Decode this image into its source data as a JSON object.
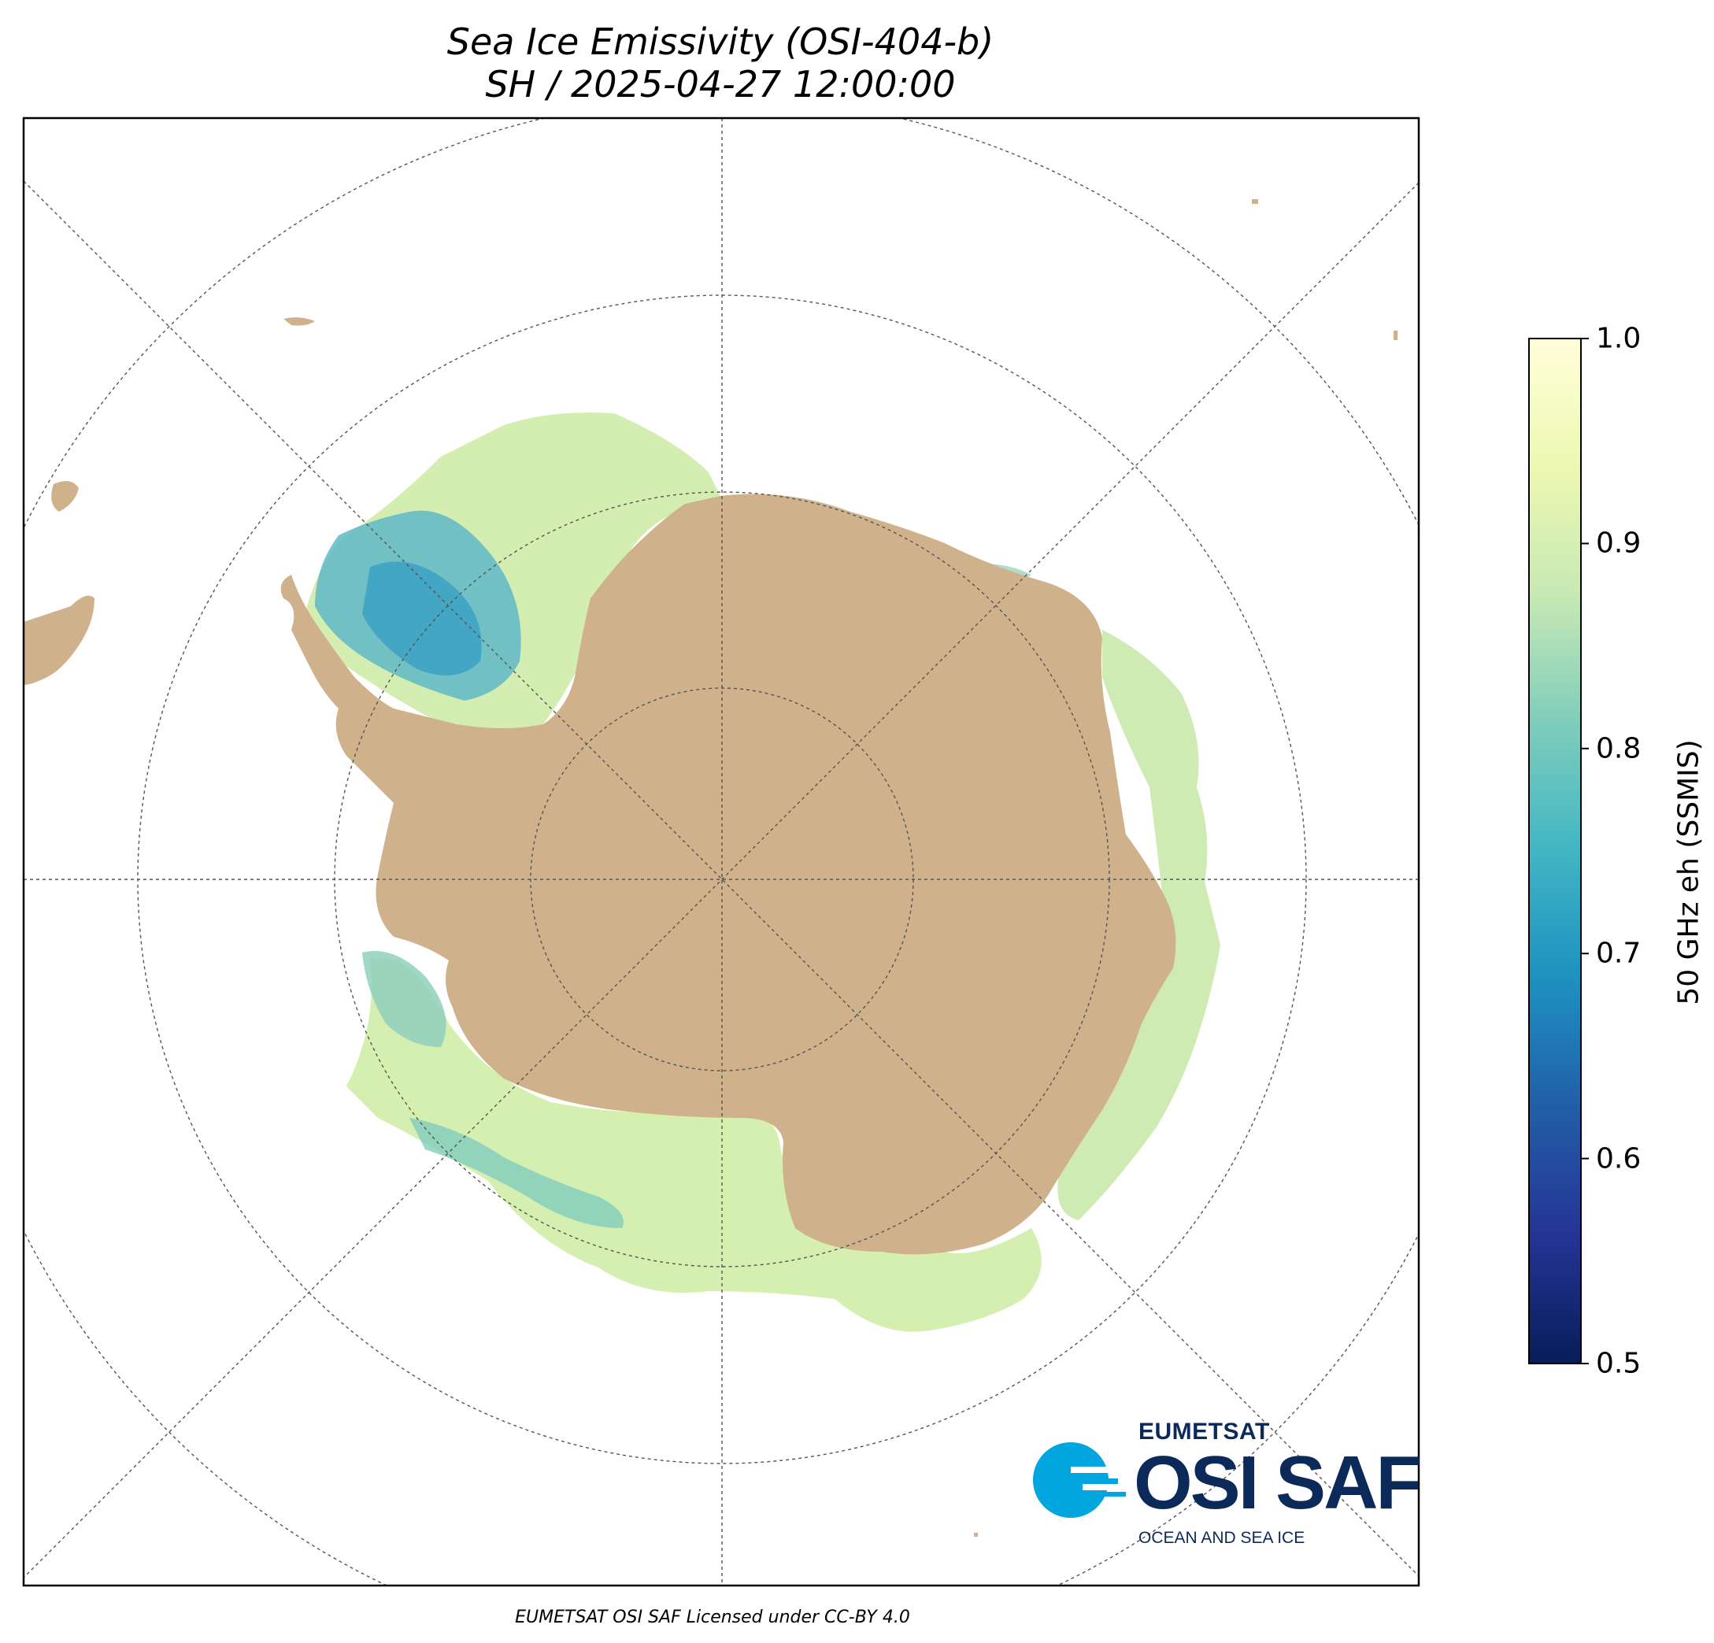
{
  "title": {
    "line1": "Sea Ice Emissivity (OSI-404-b)",
    "line2": "SH / 2025-04-27 12:00:00"
  },
  "colorbar": {
    "label": "50 GHz eh (SSMIS)",
    "min": 0.5,
    "max": 1.0,
    "ticks": [
      "1.0",
      "0.9",
      "0.8",
      "0.7",
      "0.6",
      "0.5"
    ],
    "colormap": "YlGnBu_r",
    "stops": [
      "#081d58",
      "#253494",
      "#225ea8",
      "#1d91c0",
      "#41b6c4",
      "#7fcdbb",
      "#c7e9b4",
      "#edf8b1",
      "#ffffd9"
    ]
  },
  "colors": {
    "land": "#cfb18b",
    "ocean": "#ffffff",
    "gridlines": "#555555"
  },
  "map": {
    "projection": "polar stereographic (south)",
    "gridlines": true
  },
  "logo": {
    "org": "EUMETSAT",
    "name": "OSI SAF",
    "tagline": "OCEAN AND SEA ICE"
  },
  "credit": "EUMETSAT OSI SAF Licensed under CC-BY 4.0"
}
